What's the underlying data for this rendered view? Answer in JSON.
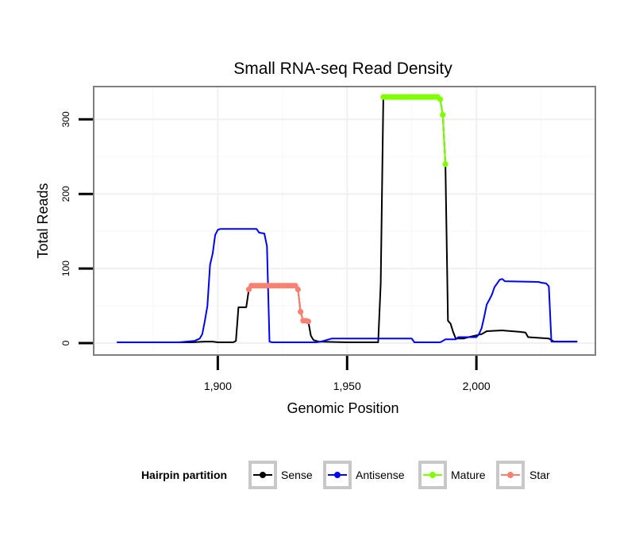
{
  "chart_data": {
    "type": "line",
    "title": "Small RNA-seq Read Density",
    "xlabel": "Genomic Position",
    "ylabel": "Total Reads",
    "xlim": [
      1852,
      2046
    ],
    "ylim": [
      -16,
      344
    ],
    "x_ticks": [
      1900,
      1950,
      2000
    ],
    "x_tick_labels": [
      "1,900",
      "1,950",
      "2,000"
    ],
    "y_ticks": [
      0,
      100,
      200,
      300
    ],
    "y_tick_labels": [
      "0",
      "100",
      "200",
      "300"
    ],
    "grid": true,
    "legend": {
      "title": "Hairpin partition",
      "position": "bottom",
      "entries": [
        "Sense",
        "Antisense",
        "Mature",
        "Star"
      ]
    },
    "series": [
      {
        "name": "Sense",
        "color": "#000000",
        "style": "line",
        "points": [
          [
            1861,
            1
          ],
          [
            1890,
            1
          ],
          [
            1895,
            2
          ],
          [
            1898,
            2
          ],
          [
            1900,
            1
          ],
          [
            1906,
            1
          ],
          [
            1907,
            3
          ],
          [
            1908,
            48
          ],
          [
            1911,
            48
          ],
          [
            1912,
            72
          ],
          [
            1913,
            77
          ],
          [
            1930,
            77
          ],
          [
            1931,
            72
          ],
          [
            1932,
            42
          ],
          [
            1933,
            30
          ],
          [
            1935,
            29
          ],
          [
            1936,
            10
          ],
          [
            1937,
            4
          ],
          [
            1939,
            2
          ],
          [
            1950,
            1
          ],
          [
            1962,
            1
          ],
          [
            1963,
            80
          ],
          [
            1964,
            330
          ],
          [
            1985,
            330
          ],
          [
            1986,
            327
          ],
          [
            1987,
            306
          ],
          [
            1988,
            240
          ],
          [
            1989,
            30
          ],
          [
            1990,
            26
          ],
          [
            1991,
            15
          ],
          [
            1992,
            6
          ],
          [
            1995,
            6
          ],
          [
            1997,
            8
          ],
          [
            2002,
            12
          ],
          [
            2004,
            16
          ],
          [
            2010,
            17
          ],
          [
            2017,
            15
          ],
          [
            2019,
            14
          ],
          [
            2020,
            8
          ],
          [
            2028,
            6
          ],
          [
            2030,
            2
          ],
          [
            2039,
            2
          ]
        ]
      },
      {
        "name": "Antisense",
        "color": "#0000ff",
        "style": "line",
        "points": [
          [
            1861,
            1
          ],
          [
            1885,
            1
          ],
          [
            1891,
            3
          ],
          [
            1893,
            6
          ],
          [
            1894,
            12
          ],
          [
            1895,
            30
          ],
          [
            1896,
            50
          ],
          [
            1897,
            105
          ],
          [
            1898,
            120
          ],
          [
            1899,
            145
          ],
          [
            1900,
            152
          ],
          [
            1901,
            153
          ],
          [
            1915,
            153
          ],
          [
            1916,
            148
          ],
          [
            1918,
            147
          ],
          [
            1919,
            130
          ],
          [
            1920,
            2
          ],
          [
            1921,
            1
          ],
          [
            1938,
            1
          ],
          [
            1940,
            2
          ],
          [
            1942,
            4
          ],
          [
            1944,
            6
          ],
          [
            1950,
            6
          ],
          [
            1965,
            6
          ],
          [
            1966,
            6
          ],
          [
            1975,
            6
          ],
          [
            1976,
            1
          ],
          [
            1986,
            1
          ],
          [
            1987,
            3
          ],
          [
            1988,
            5
          ],
          [
            1992,
            5
          ],
          [
            1993,
            8
          ],
          [
            2000,
            8
          ],
          [
            2001,
            12
          ],
          [
            2002,
            20
          ],
          [
            2003,
            35
          ],
          [
            2004,
            52
          ],
          [
            2005,
            58
          ],
          [
            2006,
            65
          ],
          [
            2007,
            75
          ],
          [
            2008,
            80
          ],
          [
            2009,
            85
          ],
          [
            2010,
            86
          ],
          [
            2011,
            83
          ],
          [
            2024,
            82
          ],
          [
            2025,
            81
          ],
          [
            2027,
            80
          ],
          [
            2028,
            76
          ],
          [
            2029,
            2
          ],
          [
            2039,
            2
          ]
        ]
      },
      {
        "name": "Mature",
        "color": "#7fff00",
        "style": "points",
        "points": [
          [
            1964,
            330
          ],
          [
            1965,
            330
          ],
          [
            1966,
            330
          ],
          [
            1967,
            330
          ],
          [
            1968,
            330
          ],
          [
            1969,
            330
          ],
          [
            1970,
            330
          ],
          [
            1971,
            330
          ],
          [
            1972,
            330
          ],
          [
            1973,
            330
          ],
          [
            1974,
            330
          ],
          [
            1975,
            330
          ],
          [
            1976,
            330
          ],
          [
            1977,
            330
          ],
          [
            1978,
            330
          ],
          [
            1979,
            330
          ],
          [
            1980,
            330
          ],
          [
            1981,
            330
          ],
          [
            1982,
            330
          ],
          [
            1983,
            330
          ],
          [
            1984,
            330
          ],
          [
            1985,
            330
          ],
          [
            1986,
            327
          ],
          [
            1987,
            306
          ],
          [
            1988,
            240
          ]
        ]
      },
      {
        "name": "Star",
        "color": "#fa8072",
        "style": "points",
        "points": [
          [
            1912,
            72
          ],
          [
            1913,
            77
          ],
          [
            1914,
            77
          ],
          [
            1915,
            77
          ],
          [
            1916,
            77
          ],
          [
            1917,
            77
          ],
          [
            1918,
            77
          ],
          [
            1919,
            77
          ],
          [
            1920,
            77
          ],
          [
            1921,
            77
          ],
          [
            1922,
            77
          ],
          [
            1923,
            77
          ],
          [
            1924,
            77
          ],
          [
            1925,
            77
          ],
          [
            1926,
            77
          ],
          [
            1927,
            77
          ],
          [
            1928,
            77
          ],
          [
            1929,
            77
          ],
          [
            1930,
            77
          ],
          [
            1931,
            72
          ],
          [
            1932,
            42
          ],
          [
            1933,
            30
          ],
          [
            1934,
            30
          ],
          [
            1935,
            29
          ]
        ]
      }
    ]
  }
}
